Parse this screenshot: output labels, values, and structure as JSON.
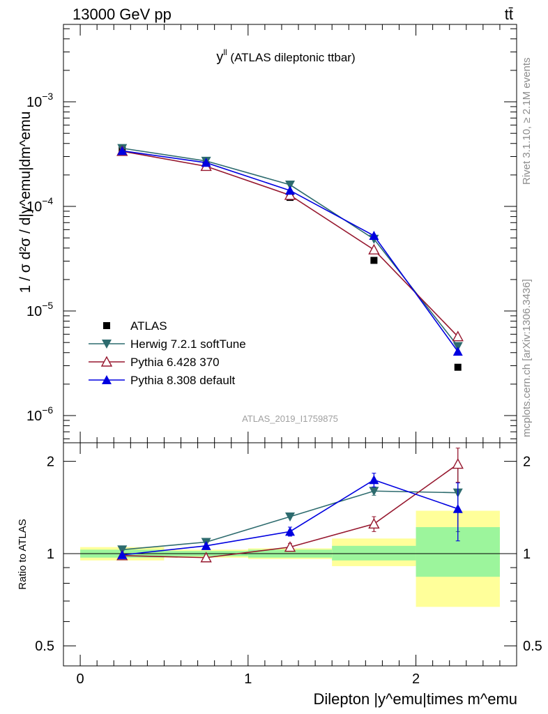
{
  "header": {
    "energy": "13000 GeV pp",
    "process": "tt̄"
  },
  "side_labels": {
    "rivet": "Rivet 3.1.10, ≥ 2.1M events",
    "mcplots": "mcplots.cern.ch [arXiv:1306.3436]"
  },
  "chart_data": {
    "type": "scatter",
    "title_main": "y",
    "title_sup": "ll",
    "title_rest": " (ATLAS dileptonic ttbar)",
    "analysis_id": "ATLAS_2019_I1759875",
    "ylabel_main": "1 / σ  d²σ / d|y^emu|dm^emu",
    "xlabel": "Dilepton |y^emu|times m^emu",
    "ratio_ylabel": "Ratio to ATLAS",
    "xlim": [
      -0.1,
      2.6
    ],
    "ylim_main": [
      5.5e-07,
      0.0055
    ],
    "ylim_ratio": [
      0.43,
      2.3
    ],
    "yscale_main": "log",
    "yscale_ratio": "log",
    "x_ticks": [
      "0",
      "1",
      "2"
    ],
    "y_ticks_main": [
      {
        "base": "10",
        "exp": "−3"
      },
      {
        "base": "10",
        "exp": "−4"
      },
      {
        "base": "10",
        "exp": "−5"
      },
      {
        "base": "10",
        "exp": "−6"
      }
    ],
    "y_ticks_ratio": [
      "2",
      "1",
      "0.5"
    ],
    "legend_position": "lower-left",
    "bins": [
      [
        0,
        0.5
      ],
      [
        0.5,
        1.0
      ],
      [
        1.0,
        1.5
      ],
      [
        1.5,
        2.0
      ],
      [
        2.0,
        2.5
      ]
    ],
    "band_stat": [
      [
        0.97,
        1.03
      ],
      [
        0.98,
        1.02
      ],
      [
        0.97,
        1.03
      ],
      [
        0.95,
        1.06
      ],
      [
        0.84,
        1.22
      ]
    ],
    "band_total": [
      [
        0.95,
        1.05
      ],
      [
        0.97,
        1.03
      ],
      [
        0.96,
        1.04
      ],
      [
        0.91,
        1.12
      ],
      [
        0.67,
        1.38
      ]
    ],
    "series": [
      {
        "name": "ATLAS",
        "role": "data",
        "color": "#000000",
        "marker": "square",
        "x": [
          0.25,
          0.75,
          1.25,
          1.75,
          2.25
        ],
        "y": [
          0.00035,
          0.00025,
          0.000122,
          3.05e-05,
          2.9e-06
        ]
      },
      {
        "name": "Herwig 7.2.1 softTune",
        "color": "#2d6b6e",
        "marker": "triangle-down",
        "x": [
          0.25,
          0.75,
          1.25,
          1.75,
          2.25
        ],
        "y": [
          0.00036,
          0.000272,
          0.000161,
          4.88e-05,
          4.6e-06
        ],
        "ratio": [
          1.03,
          1.09,
          1.32,
          1.6,
          1.58
        ],
        "ratio_err": [
          0,
          0,
          0,
          0.05,
          0.4
        ]
      },
      {
        "name": "Pythia 6.428 370",
        "color": "#96172e",
        "marker": "triangle-up-open",
        "x": [
          0.25,
          0.75,
          1.25,
          1.75,
          2.25
        ],
        "y": [
          0.000337,
          0.000242,
          0.000128,
          3.85e-05,
          5.7e-06
        ],
        "ratio": [
          0.985,
          0.97,
          1.05,
          1.25,
          1.96
        ],
        "ratio_err": [
          0,
          0,
          0.03,
          0.07,
          0.25
        ]
      },
      {
        "name": "Pythia 8.308 default",
        "color": "#0000e0",
        "marker": "triangle-up",
        "x": [
          0.25,
          0.75,
          1.25,
          1.75,
          2.25
        ],
        "y": [
          0.00034,
          0.000262,
          0.000142,
          5.25e-05,
          4.1e-06
        ],
        "ratio": [
          0.99,
          1.06,
          1.18,
          1.74,
          1.4
        ],
        "ratio_err": [
          0,
          0,
          0.04,
          0.09,
          0.3
        ]
      }
    ]
  }
}
